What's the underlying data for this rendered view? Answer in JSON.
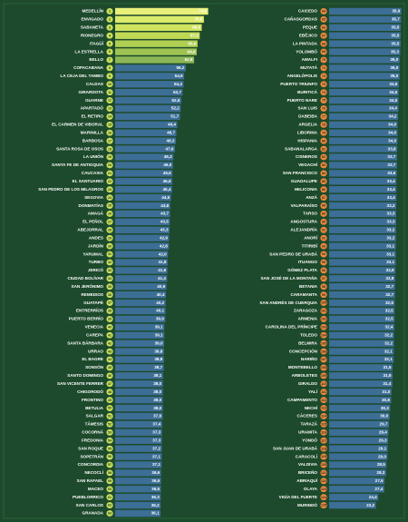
{
  "chart_data": [
    {
      "type": "bar",
      "orientation": "horizontal",
      "xlim": [
        0,
        75
      ],
      "badge_color": "#c8e05a",
      "color": "#3c6e96",
      "categories": [
        "MEDELLÍN",
        "ENVIGADO",
        "SABANETA",
        "RIONEGRO",
        "ITAGÜÍ",
        "LA ESTRELLA",
        "BELLO",
        "COPACABANA",
        "LA CEJA DEL TAMBO",
        "CALDAS",
        "GIRARDOTA",
        "GUARNE",
        "APARTADÓ",
        "EL RETIRO",
        "EL CARMEN DE VIBORAL",
        "MARINILLA",
        "BARBOSA",
        "SANTA ROSA DE OSOS",
        "LA UNIÓN",
        "SANTA FE DE ANTIOQUIA",
        "CAUCASIA",
        "EL SANTUARIO",
        "SAN PEDRO DE LOS MILAGROS",
        "SEGOVIA",
        "DONMATÍAS",
        "AMAGÁ",
        "EL PEÑOL",
        "ABEJORRAL",
        "ANDES",
        "JARDÍN",
        "YARUMAL",
        "TURBO",
        "JERICÓ",
        "CIUDAD BOLÍVAR",
        "SAN JERÓNIMO",
        "REMEDIOS",
        "GUATAPÉ",
        "ENTRERRÍOS",
        "PUERTO BERRÍO",
        "VENECIA",
        "CAREPA",
        "SANTA BÁRBARA",
        "URRAO",
        "EL BAGRE",
        "SONSÓN",
        "SANTO DOMINGO",
        "SAN VICENTE FERRER",
        "CHIGORODÓ",
        "FRONTINO",
        "BETULIA",
        "SALGAR",
        "TÁMESIS",
        "COCORNÁ",
        "FREDONIA",
        "SAN ROQUE",
        "SOPETRÁN",
        "CONCORDIA",
        "NECOCLÍ",
        "SAN RAFAEL",
        "MACEO",
        "PUEBLORRICO",
        "SAN CARLOS",
        "GRANADA"
      ],
      "ranks": [
        1,
        2,
        3,
        4,
        5,
        6,
        7,
        8,
        9,
        10,
        11,
        12,
        13,
        14,
        15,
        16,
        17,
        18,
        19,
        20,
        21,
        22,
        23,
        24,
        25,
        26,
        27,
        28,
        29,
        30,
        31,
        32,
        33,
        34,
        35,
        36,
        37,
        38,
        39,
        40,
        41,
        42,
        43,
        44,
        45,
        46,
        47,
        48,
        49,
        50,
        51,
        52,
        53,
        54,
        55,
        56,
        57,
        58,
        59,
        60,
        61,
        62,
        63
      ],
      "values": [
        74.0,
        70.6,
        68.9,
        67.3,
        65.6,
        64.9,
        62.8,
        56.2,
        54.9,
        54.4,
        53.7,
        52.6,
        52.2,
        51.7,
        49.4,
        48.7,
        48.3,
        47.6,
        46.3,
        46.0,
        45.6,
        45.5,
        45.4,
        44.5,
        43.8,
        43.7,
        43.5,
        43.3,
        42.9,
        42.8,
        42.0,
        41.8,
        41.6,
        41.4,
        40.9,
        40.4,
        40.2,
        40.1,
        39.9,
        39.1,
        39.1,
        39.0,
        38.8,
        38.8,
        38.7,
        38.1,
        38.0,
        38.0,
        38.0,
        38.0,
        37.9,
        37.4,
        37.3,
        37.3,
        37.2,
        37.1,
        37.1,
        36.6,
        36.6,
        36.5,
        36.3,
        36.2,
        36.1
      ],
      "value_labels": [
        "74,0",
        "70,6",
        "68,9",
        "67,3",
        "65,6",
        "64,9",
        "62,8",
        "56,2",
        "54,9",
        "54,4",
        "53,7",
        "52,6",
        "52,2",
        "51,7",
        "49,4",
        "48,7",
        "48,3",
        "47,6",
        "46,3",
        "46,0",
        "45,6",
        "45,5",
        "45,4",
        "44,5",
        "43,8",
        "43,7",
        "43,5",
        "43,3",
        "42,9",
        "42,8",
        "42,0",
        "41,8",
        "41,6",
        "41,4",
        "40,9",
        "40,4",
        "40,2",
        "40,1",
        "39,9",
        "39,1",
        "39,1",
        "39,0",
        "38,8",
        "38,8",
        "38,7",
        "38,1",
        "38,0",
        "38,0",
        "38,0",
        "38,0",
        "37,9",
        "37,4",
        "37,3",
        "37,3",
        "37,2",
        "37,1",
        "37,1",
        "36,6",
        "36,6",
        "36,5",
        "36,3",
        "36,2",
        "36,1"
      ],
      "colors": [
        "#e8f07a",
        "#dceb6a",
        "#cfe35e",
        "#c0d955",
        "#b0cf52",
        "#9fc352",
        "#8db656",
        "#3c6e96",
        "#3c6e96",
        "#3c6e96",
        "#3c6e96",
        "#3c6e96",
        "#3c6e96",
        "#3c6e96",
        "#3c6e96",
        "#3c6e96",
        "#3c6e96",
        "#3c6e96",
        "#3c6e96",
        "#3c6e96",
        "#3c6e96",
        "#3c6e96",
        "#3c6e96",
        "#3c6e96",
        "#3c6e96",
        "#3c6e96",
        "#3c6e96",
        "#3c6e96",
        "#3c6e96",
        "#3c6e96",
        "#3c6e96",
        "#3c6e96",
        "#3c6e96",
        "#3c6e96",
        "#3c6e96",
        "#3c6e96",
        "#3c6e96",
        "#3c6e96",
        "#3c6e96",
        "#3c6e96",
        "#3c6e96",
        "#3c6e96",
        "#3c6e96",
        "#3c6e96",
        "#3c6e96",
        "#3c6e96",
        "#3c6e96",
        "#3c6e96",
        "#3c6e96",
        "#3c6e96",
        "#3c6e96",
        "#3c6e96",
        "#3c6e96",
        "#3c6e96",
        "#3c6e96",
        "#3c6e96",
        "#3c6e96",
        "#3c6e96",
        "#3c6e96",
        "#3c6e96",
        "#3c6e96",
        "#3c6e96",
        "#3c6e96"
      ]
    },
    {
      "type": "bar",
      "orientation": "horizontal",
      "xlim": [
        0,
        36
      ],
      "badge_color": "#f08a3c",
      "color": "#3c6e96",
      "categories": [
        "CAICEDO",
        "CAÑASGORDAS",
        "PEQUE",
        "EBÉJICO",
        "LA PINTADA",
        "YOLOMBÓ",
        "AMALFI",
        "MUTATÁ",
        "ANGELÓPOLIS",
        "PUERTO TRIUNFO",
        "BURITICÁ",
        "PUERTO NARE",
        "SAN LUIS",
        "DABEIBA",
        "ARGELIA",
        "LIBORINA",
        "HISPANIA",
        "SABANALARGA",
        "CISNEROS",
        "VEGACHÍ",
        "SAN FRANCISCO",
        "GUADALUPE",
        "HELICONIA",
        "ANZÁ",
        "VALPARAÍSO",
        "TARSO",
        "ANGOSTURA",
        "ALEJANDRÍA",
        "ANORÍ",
        "TITIRIBÍ",
        "SAN PEDRO DE URABÁ",
        "ITUANGO",
        "GÓMEZ PLATA",
        "SAN JOSÉ DE LA MONTAÑA",
        "BETANIA",
        "CARAMANTA",
        "SAN ANDRÉS DE CUERQUIA",
        "ZARAGOZA",
        "ARMENIA",
        "CAROLINA DEL PRÍNCIPE",
        "TOLEDO",
        "BELMIRA",
        "CONCEPCIÓN",
        "NARIÑO",
        "MONTEBELLO",
        "ARBOLETES",
        "GIRALDO",
        "YALÍ",
        "CAMPAMENTO",
        "NECHÍ",
        "CÁCERES",
        "TARAZÁ",
        "URAMITA",
        "YONDÓ",
        "SAN JUAN DE URABÁ",
        "CARACOLÍ",
        "VALDIVIA",
        "BRICEÑO",
        "ABRIAQUÍ",
        "OLAYA",
        "VIGÍA DEL FUERTE",
        "MURINDÓ"
      ],
      "ranks": [
        64,
        65,
        66,
        67,
        68,
        69,
        70,
        71,
        72,
        73,
        74,
        75,
        76,
        77,
        78,
        79,
        80,
        81,
        82,
        83,
        84,
        85,
        86,
        87,
        88,
        89,
        90,
        91,
        92,
        93,
        94,
        95,
        96,
        97,
        98,
        99,
        100,
        101,
        102,
        103,
        104,
        105,
        106,
        107,
        108,
        109,
        110,
        111,
        112,
        113,
        114,
        115,
        116,
        117,
        118,
        119,
        120,
        121,
        122,
        123,
        124,
        125
      ],
      "values": [
        35.9,
        35.7,
        35.5,
        35.5,
        35.5,
        35.3,
        35.0,
        35.0,
        35.0,
        34.6,
        34.5,
        34.5,
        34.4,
        34.2,
        34.0,
        34.0,
        34.0,
        33.8,
        33.7,
        33.7,
        33.6,
        33.4,
        33.4,
        33.4,
        33.3,
        33.3,
        33.3,
        33.2,
        33.2,
        33.1,
        33.1,
        33.1,
        32.9,
        32.8,
        32.7,
        32.7,
        32.6,
        32.5,
        32.5,
        32.4,
        32.2,
        32.2,
        32.1,
        32.1,
        31.5,
        31.5,
        31.4,
        31.0,
        30.8,
        30.3,
        30.0,
        29.7,
        29.4,
        29.3,
        29.1,
        29.0,
        28.5,
        28.3,
        27.5,
        27.4,
        24.4,
        23.2
      ],
      "value_labels": [
        "35,9",
        "35,7",
        "35,5",
        "35,5",
        "35,5",
        "35,3",
        "35,0",
        "35,0",
        "35,0",
        "34,6",
        "34,5",
        "34,5",
        "34,4",
        "34,2",
        "34,0",
        "34,0",
        "34,0",
        "33,8",
        "33,7",
        "33,7",
        "33,6",
        "33,4",
        "33,4",
        "33,4",
        "33,3",
        "33,3",
        "33,3",
        "33,2",
        "33,2",
        "33,1",
        "33,1",
        "33,1",
        "32,9",
        "32,8",
        "32,7",
        "32,7",
        "32,6",
        "32,5",
        "32,5",
        "32,4",
        "32,2",
        "32,2",
        "32,1",
        "32,1",
        "31,5",
        "31,5",
        "31,4",
        "31,0",
        "30,8",
        "30,3",
        "30,0",
        "29,7",
        "29,4",
        "29,3",
        "29,1",
        "29,0",
        "28,5",
        "28,3",
        "27,5",
        "27,4",
        "24,4",
        "23,2"
      ]
    }
  ]
}
